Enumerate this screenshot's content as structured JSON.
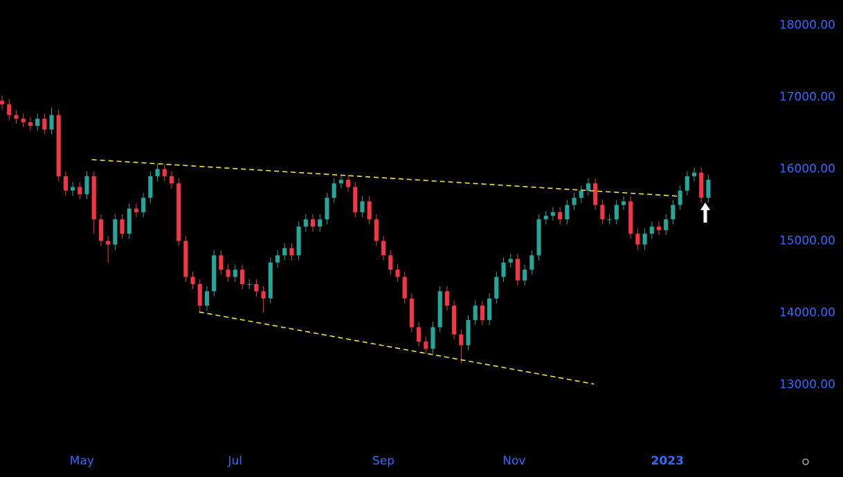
{
  "chart_data": {
    "type": "candlestick",
    "up_color": "#26a69a",
    "down_color": "#f23645",
    "trendline_color": "#f5e642",
    "axis_color": "#2f6bff",
    "xlim": [
      -0.3,
      107.7
    ],
    "ylim": [
      12150,
      18350
    ],
    "xticks": [
      {
        "value": 11.3,
        "label": "May"
      },
      {
        "value": 33,
        "label": "Jul"
      },
      {
        "value": 54,
        "label": "Sep"
      },
      {
        "value": 72.5,
        "label": "Nov"
      },
      {
        "value": 94.2,
        "label": "2023"
      }
    ],
    "yticks": [
      {
        "value": 13000,
        "label": "13000.00"
      },
      {
        "value": 14000,
        "label": "14000.00"
      },
      {
        "value": 15000,
        "label": "15000.00"
      },
      {
        "value": 16000,
        "label": "16000.00"
      },
      {
        "value": 17000,
        "label": "17000.00"
      },
      {
        "value": 18000,
        "label": "18000.00"
      }
    ],
    "open": [
      16950,
      16900,
      16750,
      16700,
      16650,
      16600,
      16700,
      16550,
      16750,
      15900,
      15700,
      15750,
      15650,
      15900,
      15300,
      15000,
      14950,
      15300,
      15100,
      15450,
      15400,
      15600,
      15900,
      16000,
      15900,
      15800,
      15000,
      14500,
      14400,
      14100,
      14300,
      14800,
      14600,
      14500,
      14600,
      14400,
      14400,
      14300,
      14200,
      14700,
      14800,
      14900,
      14800,
      15200,
      15300,
      15200,
      15300,
      15600,
      15800,
      15850,
      15750,
      15400,
      15550,
      15300,
      15000,
      14800,
      14600,
      14500,
      14200,
      13800,
      13600,
      13500,
      13800,
      14300,
      14100,
      13700,
      13550,
      13900,
      14100,
      13900,
      14200,
      14500,
      14700,
      14750,
      14450,
      14600,
      14800,
      15300,
      15350,
      15400,
      15300,
      15500,
      15600,
      15700,
      15800,
      15500,
      15300,
      15300,
      15500,
      15550,
      15100,
      14950,
      15100,
      15200,
      15150,
      15300,
      15500,
      15700,
      15900,
      15950,
      15600
    ],
    "high": [
      17020,
      16970,
      16820,
      16770,
      16720,
      16770,
      16770,
      16850,
      16820,
      15970,
      15820,
      15820,
      15970,
      15970,
      15370,
      15070,
      15370,
      15370,
      15520,
      15520,
      15670,
      15970,
      16070,
      16070,
      15970,
      15870,
      15070,
      14570,
      14470,
      14370,
      14870,
      14870,
      14670,
      14670,
      14670,
      14470,
      14470,
      14370,
      14770,
      14870,
      14970,
      14970,
      15270,
      15370,
      15370,
      15370,
      15670,
      15870,
      15920,
      15920,
      15820,
      15620,
      15620,
      15370,
      15070,
      14870,
      14670,
      14570,
      14270,
      13870,
      13670,
      13870,
      14370,
      14370,
      14170,
      13770,
      13970,
      14170,
      14170,
      14270,
      14570,
      14770,
      14820,
      14820,
      14670,
      14870,
      15370,
      15420,
      15470,
      15470,
      15570,
      15670,
      15770,
      15870,
      15870,
      15570,
      15370,
      15570,
      15620,
      15620,
      15170,
      15170,
      15270,
      15270,
      15370,
      15570,
      15770,
      15970,
      16020,
      16020,
      15920
    ],
    "low": [
      16830,
      16680,
      16630,
      16580,
      16530,
      16530,
      16480,
      16480,
      15830,
      15630,
      15630,
      15580,
      15580,
      15100,
      14930,
      14700,
      14880,
      15030,
      15030,
      15330,
      15330,
      15530,
      15830,
      15830,
      15730,
      14930,
      14430,
      14330,
      14000,
      14030,
      14230,
      14530,
      14430,
      14430,
      14330,
      14330,
      14230,
      14000,
      14130,
      14630,
      14730,
      14730,
      14730,
      15130,
      15130,
      15130,
      15230,
      15530,
      15730,
      15680,
      15330,
      15330,
      15230,
      14930,
      14730,
      14530,
      14430,
      14130,
      13730,
      13530,
      13430,
      13430,
      13730,
      14030,
      13630,
      13300,
      13480,
      13830,
      13830,
      13830,
      14130,
      14430,
      14630,
      14380,
      14380,
      14530,
      14730,
      15230,
      15280,
      15230,
      15230,
      15430,
      15530,
      15630,
      15430,
      15230,
      15230,
      15230,
      15430,
      15030,
      14880,
      14880,
      15030,
      15080,
      15080,
      15230,
      15430,
      15630,
      15830,
      15530,
      15530
    ],
    "close": [
      16900,
      16750,
      16700,
      16650,
      16600,
      16700,
      16550,
      16750,
      15900,
      15700,
      15750,
      15650,
      15900,
      15300,
      15000,
      14950,
      15300,
      15100,
      15450,
      15400,
      15600,
      15900,
      16000,
      15900,
      15800,
      15000,
      14500,
      14400,
      14100,
      14300,
      14800,
      14600,
      14500,
      14600,
      14400,
      14400,
      14300,
      14200,
      14700,
      14800,
      14900,
      14800,
      15200,
      15300,
      15200,
      15300,
      15600,
      15800,
      15850,
      15750,
      15400,
      15550,
      15300,
      15000,
      14800,
      14600,
      14500,
      14200,
      13800,
      13600,
      13500,
      13800,
      14300,
      14100,
      13700,
      13550,
      13900,
      14100,
      13900,
      14200,
      14500,
      14700,
      14750,
      14450,
      14600,
      14800,
      15300,
      15350,
      15400,
      15300,
      15500,
      15600,
      15700,
      15800,
      15500,
      15300,
      15300,
      15500,
      15550,
      15100,
      14950,
      15100,
      15200,
      15150,
      15300,
      15500,
      15700,
      15900,
      15950,
      15600,
      15850
    ],
    "trendlines": [
      {
        "x": [
          12.7,
          96.1
        ],
        "y": [
          16130,
          15620
        ]
      },
      {
        "x": [
          27.9,
          83.8
        ],
        "y": [
          14012,
          13010
        ]
      }
    ]
  }
}
